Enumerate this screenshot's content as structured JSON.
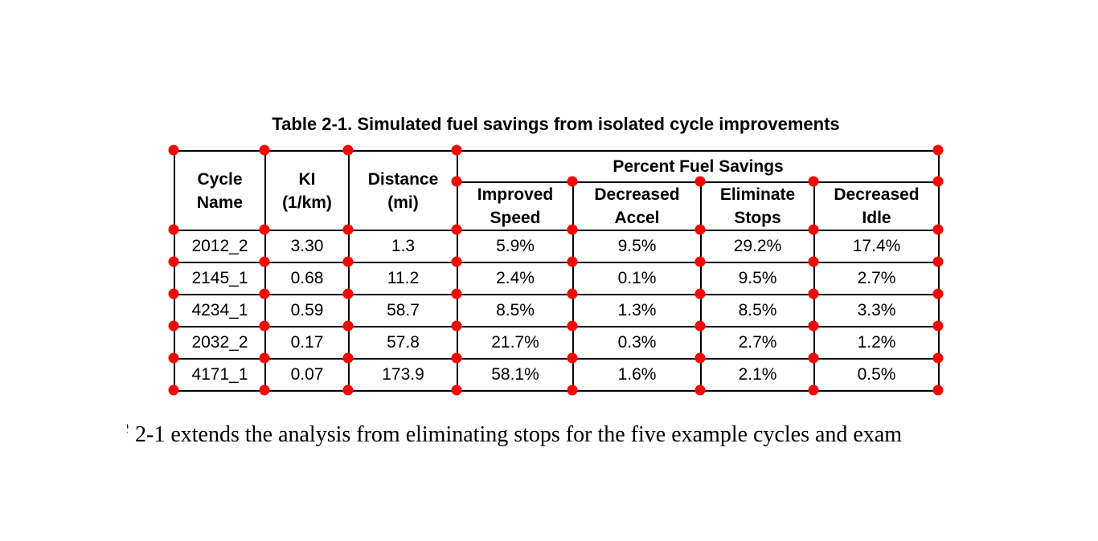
{
  "page": {
    "background": "#ffffff"
  },
  "markers": {
    "color": "#ff0000",
    "shape": "corner-dot"
  },
  "table": {
    "title": "Table 2-1. Simulated fuel savings from isolated cycle improvements",
    "col_headers": [
      "Cycle\nName",
      "KI\n(1/km)",
      "Distance\n(mi)"
    ],
    "group_header": "Percent Fuel Savings",
    "sub_headers": [
      "Improved\nSpeed",
      "Decreased\nAccel",
      "Eliminate\nStops",
      "Decreased\nIdle"
    ],
    "rows": [
      {
        "cycle": "2012_2",
        "ki": "3.30",
        "distance": "1.3",
        "improved_speed": "5.9%",
        "decreased_accel": "9.5%",
        "eliminate_stops": "29.2%",
        "decreased_idle": "17.4%"
      },
      {
        "cycle": "2145_1",
        "ki": "0.68",
        "distance": "11.2",
        "improved_speed": "2.4%",
        "decreased_accel": "0.1%",
        "eliminate_stops": "9.5%",
        "decreased_idle": "2.7%"
      },
      {
        "cycle": "4234_1",
        "ki": "0.59",
        "distance": "58.7",
        "improved_speed": "8.5%",
        "decreased_accel": "1.3%",
        "eliminate_stops": "8.5%",
        "decreased_idle": "3.3%"
      },
      {
        "cycle": "2032_2",
        "ki": "0.17",
        "distance": "57.8",
        "improved_speed": "21.7%",
        "decreased_accel": "0.3%",
        "eliminate_stops": "2.7%",
        "decreased_idle": "1.2%"
      },
      {
        "cycle": "4171_1",
        "ki": "0.07",
        "distance": "173.9",
        "improved_speed": "58.1%",
        "decreased_accel": "1.6%",
        "eliminate_stops": "2.1%",
        "decreased_idle": "0.5%"
      }
    ]
  },
  "body": {
    "fragment": "e",
    "text": "2-1 extends the analysis from eliminating stops for the five example cycles and exam"
  }
}
